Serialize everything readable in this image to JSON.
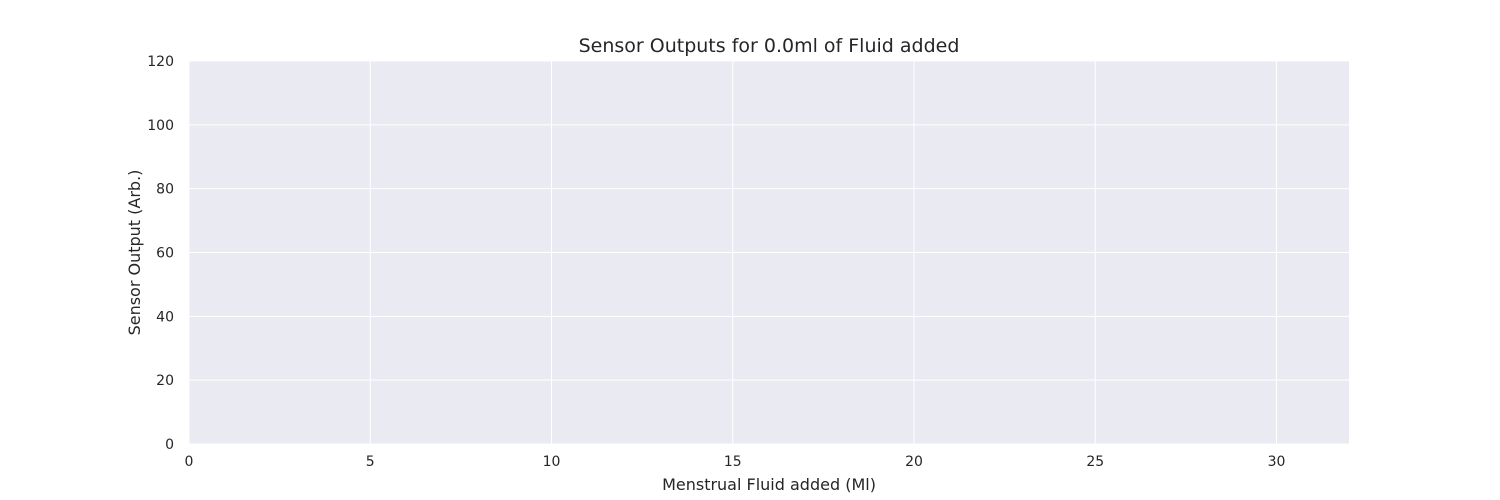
{
  "chart_data": {
    "type": "line",
    "title": "Sensor Outputs for 0.0ml of Fluid added",
    "xlabel": "Menstrual Fluid added (Ml)",
    "ylabel": "Sensor Output (Arb.)",
    "xlim": [
      0,
      32
    ],
    "ylim": [
      0,
      120
    ],
    "xticks": [
      0,
      5,
      10,
      15,
      20,
      25,
      30
    ],
    "yticks": [
      0,
      20,
      40,
      60,
      80,
      100,
      120
    ],
    "grid": true,
    "series": [],
    "colors": {
      "plot_background": "#eaeaf2",
      "grid": "#ffffff",
      "text": "#262626"
    }
  }
}
